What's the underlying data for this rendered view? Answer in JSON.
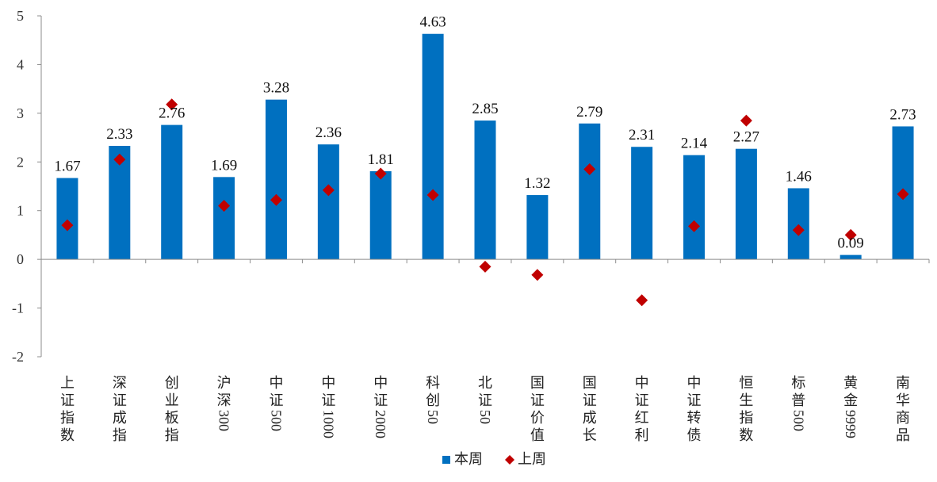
{
  "chart_data": {
    "type": "bar",
    "title": "",
    "xlabel": "",
    "ylabel": "",
    "ylim": [
      -2,
      5
    ],
    "yticks": [
      -2,
      -1,
      0,
      1,
      2,
      3,
      4,
      5
    ],
    "grid": false,
    "legend_position": "bottom",
    "categories": [
      "上证指数",
      "深证成指",
      "创业板指",
      "沪深300",
      "中证500",
      "中证1000",
      "中证2000",
      "科创50",
      "北证50",
      "国证价值",
      "国证成长",
      "中证红利",
      "中证转债",
      "恒生指数",
      "标普500",
      "黄金9999",
      "南华商品"
    ],
    "series": [
      {
        "name": "本周",
        "kind": "bar",
        "color": "#0070C0",
        "values": [
          1.67,
          2.33,
          2.76,
          1.69,
          3.28,
          2.36,
          1.81,
          4.63,
          2.85,
          1.32,
          2.79,
          2.31,
          2.14,
          2.27,
          1.46,
          0.09,
          2.73
        ],
        "labels": [
          "1.67",
          "2.33",
          "2.76",
          "1.69",
          "3.28",
          "2.36",
          "1.81",
          "4.63",
          "2.85",
          "1.32",
          "2.79",
          "2.31",
          "2.14",
          "2.27",
          "1.46",
          "0.09",
          "2.73"
        ]
      },
      {
        "name": "上周",
        "kind": "marker",
        "color": "#C00000",
        "values": [
          0.7,
          2.05,
          3.18,
          1.1,
          1.22,
          1.42,
          1.76,
          1.32,
          -0.15,
          -0.32,
          1.85,
          -0.84,
          0.68,
          2.85,
          0.6,
          0.5,
          1.34
        ]
      }
    ]
  }
}
